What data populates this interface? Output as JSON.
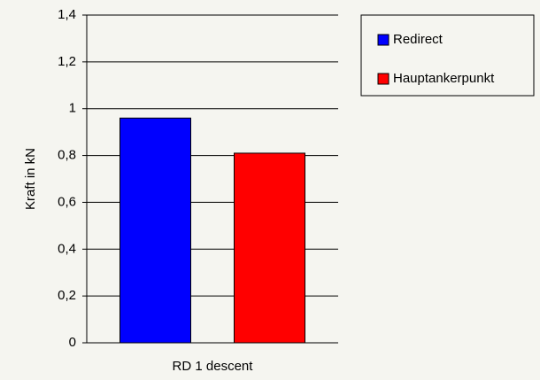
{
  "chart_data": {
    "type": "bar",
    "categories": [
      "RD 1 descent"
    ],
    "series": [
      {
        "name": "Redirect",
        "color": "#0000ff",
        "values": [
          0.96
        ]
      },
      {
        "name": "Hauptankerpunkt",
        "color": "#ff0000",
        "values": [
          0.81
        ]
      }
    ],
    "ylabel": "Kraft in kN",
    "ylim": [
      0,
      1.4
    ],
    "yticks": [
      0,
      {
        "value": 0.2,
        "label": "0,2"
      },
      {
        "value": 0.4,
        "label": "0,4"
      },
      {
        "value": 0.6,
        "label": "0,6"
      },
      {
        "value": 0.8,
        "label": "0,8"
      },
      1,
      {
        "value": 1.2,
        "label": "1,2"
      },
      {
        "value": 1.4,
        "label": "1,4"
      }
    ],
    "grid": true,
    "legend": "upper right"
  }
}
